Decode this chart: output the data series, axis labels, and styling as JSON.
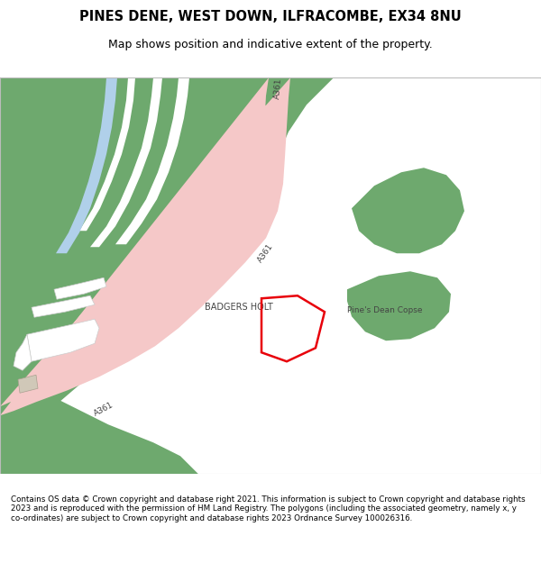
{
  "title": "PINES DENE, WEST DOWN, ILFRACOMBE, EX34 8NU",
  "subtitle": "Map shows position and indicative extent of the property.",
  "footer": "Contains OS data © Crown copyright and database right 2021. This information is subject to Crown copyright and database rights 2023 and is reproduced with the permission of HM Land Registry. The polygons (including the associated geometry, namely x, y co-ordinates) are subject to Crown copyright and database rights 2023 Ordnance Survey 100026316.",
  "map_bg": "#f7f4ef",
  "green": "#6ea96e",
  "road": "#f5c8c8",
  "water": "#b0d0ea",
  "white": "#ffffff",
  "gray_bld": "#d0c8b8",
  "gray_edge": "#aaa090",
  "red": "#e8000a",
  "txt": "#444444"
}
